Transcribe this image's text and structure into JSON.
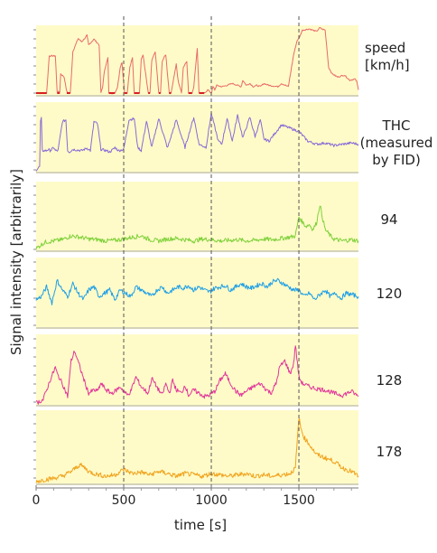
{
  "chart_data": {
    "type": "line",
    "xlabel": "time [s]",
    "ylabel": "Signal intensity [arbitrarily]",
    "xlim": [
      0,
      1840
    ],
    "xticks": [
      0,
      500,
      1000,
      1500
    ],
    "xtick_labels": [
      "0",
      "500",
      "1000",
      "1500"
    ],
    "grid": "dashed vertical lines at 500, 1000, 1500 s",
    "background": "#fffbc8",
    "panels": [
      {
        "label_lines": [
          "speed",
          "[km/h]"
        ],
        "color": "#e86a6a",
        "x": [
          0,
          60,
          75,
          110,
          120,
          135,
          140,
          160,
          175,
          195,
          210,
          240,
          260,
          280,
          290,
          300,
          330,
          360,
          370,
          380,
          390,
          410,
          415,
          450,
          465,
          480,
          490,
          505,
          520,
          535,
          550,
          560,
          590,
          600,
          610,
          640,
          650,
          660,
          680,
          700,
          710,
          720,
          740,
          760,
          770,
          800,
          810,
          830,
          840,
          860,
          870,
          890,
          900,
          920,
          930,
          960,
          980,
          1000,
          1010,
          1020,
          1030,
          1060,
          1090,
          1120,
          1150,
          1170,
          1180,
          1200,
          1220,
          1240,
          1260,
          1280,
          1300,
          1330,
          1380,
          1400,
          1440,
          1470,
          1490,
          1500,
          1520,
          1560,
          1600,
          1620,
          1630,
          1650,
          1670,
          1690,
          1720,
          1760,
          1790,
          1820,
          1830,
          1840
        ],
        "y": [
          0,
          0,
          58,
          58,
          2,
          2,
          30,
          25,
          2,
          0,
          65,
          85,
          80,
          86,
          90,
          75,
          84,
          75,
          0,
          10,
          35,
          55,
          0,
          0,
          10,
          40,
          48,
          0,
          0,
          40,
          55,
          0,
          0,
          52,
          60,
          0,
          0,
          50,
          65,
          0,
          0,
          50,
          60,
          0,
          0,
          45,
          20,
          0,
          40,
          50,
          0,
          0,
          10,
          70,
          0,
          0,
          5,
          0,
          10,
          5,
          12,
          10,
          12,
          15,
          12,
          10,
          20,
          12,
          15,
          10,
          12,
          10,
          15,
          12,
          10,
          15,
          10,
          60,
          82,
          85,
          98,
          100,
          96,
          102,
          100,
          98,
          40,
          30,
          25,
          28,
          20,
          22,
          18,
          5
        ]
      },
      {
        "label_lines": [
          "THC",
          "(measured",
          "by FID)"
        ],
        "color": "#8a6ad6",
        "x": [
          0,
          20,
          25,
          30,
          35,
          60,
          70,
          80,
          90,
          100,
          110,
          125,
          150,
          170,
          180,
          190,
          210,
          260,
          290,
          310,
          330,
          350,
          370,
          400,
          420,
          440,
          450,
          470,
          500,
          530,
          560,
          580,
          600,
          630,
          660,
          700,
          750,
          800,
          850,
          900,
          930,
          970,
          1000,
          1040,
          1060,
          1090,
          1120,
          1150,
          1180,
          1220,
          1250,
          1280,
          1300,
          1330,
          1400,
          1500,
          1550,
          1600,
          1650,
          1700,
          1750,
          1800,
          1840
        ],
        "y": [
          0,
          5,
          75,
          80,
          30,
          30,
          32,
          30,
          32,
          35,
          30,
          30,
          75,
          78,
          30,
          28,
          32,
          30,
          34,
          30,
          75,
          72,
          32,
          30,
          28,
          32,
          35,
          30,
          32,
          78,
          80,
          35,
          30,
          76,
          35,
          80,
          34,
          78,
          35,
          82,
          40,
          35,
          88,
          45,
          40,
          80,
          45,
          85,
          50,
          82,
          52,
          78,
          48,
          45,
          70,
          60,
          45,
          40,
          42,
          38,
          40,
          42,
          40
        ]
      },
      {
        "label_lines": [
          "94"
        ],
        "color": "#7fd13b",
        "x": [
          0,
          50,
          100,
          150,
          200,
          250,
          300,
          350,
          400,
          450,
          500,
          550,
          600,
          650,
          700,
          750,
          800,
          850,
          900,
          950,
          1000,
          1050,
          1100,
          1150,
          1200,
          1250,
          1300,
          1350,
          1400,
          1450,
          1480,
          1500,
          1520,
          1540,
          1560,
          1580,
          1600,
          1620,
          1630,
          1650,
          1680,
          1700,
          1750,
          1800,
          1840
        ],
        "y": [
          0,
          10,
          12,
          14,
          20,
          18,
          15,
          14,
          12,
          13,
          15,
          18,
          20,
          14,
          12,
          15,
          16,
          14,
          12,
          15,
          14,
          12,
          13,
          14,
          12,
          13,
          15,
          14,
          16,
          18,
          20,
          50,
          42,
          35,
          38,
          30,
          40,
          70,
          55,
          30,
          20,
          15,
          12,
          14,
          12
        ]
      },
      {
        "label_lines": [
          "120"
        ],
        "color": "#1f9fe6",
        "x": [
          0,
          30,
          60,
          90,
          120,
          150,
          180,
          210,
          240,
          270,
          300,
          330,
          360,
          390,
          420,
          450,
          480,
          510,
          540,
          570,
          600,
          630,
          660,
          690,
          720,
          750,
          780,
          810,
          840,
          870,
          900,
          930,
          960,
          990,
          1020,
          1050,
          1080,
          1110,
          1140,
          1170,
          1200,
          1230,
          1260,
          1290,
          1320,
          1350,
          1380,
          1410,
          1440,
          1470,
          1500,
          1530,
          1560,
          1590,
          1620,
          1650,
          1680,
          1710,
          1740,
          1770,
          1800,
          1840
        ],
        "y": [
          40,
          45,
          60,
          35,
          70,
          55,
          45,
          65,
          50,
          40,
          55,
          60,
          45,
          50,
          55,
          40,
          55,
          50,
          45,
          60,
          55,
          50,
          45,
          55,
          60,
          50,
          55,
          60,
          58,
          62,
          55,
          60,
          55,
          52,
          58,
          60,
          62,
          55,
          60,
          65,
          60,
          58,
          62,
          65,
          60,
          68,
          70,
          65,
          60,
          55,
          55,
          45,
          50,
          40,
          48,
          55,
          45,
          50,
          42,
          50,
          48,
          45
        ]
      },
      {
        "label_lines": [
          "128"
        ],
        "color": "#e0369a",
        "x": [
          0,
          40,
          80,
          110,
          120,
          150,
          180,
          200,
          220,
          250,
          280,
          300,
          330,
          350,
          370,
          400,
          430,
          450,
          480,
          520,
          540,
          570,
          600,
          640,
          660,
          700,
          720,
          740,
          760,
          780,
          800,
          830,
          850,
          870,
          900,
          930,
          960,
          990,
          1020,
          1050,
          1080,
          1110,
          1140,
          1170,
          1200,
          1240,
          1280,
          1310,
          1340,
          1370,
          1390,
          1420,
          1450,
          1470,
          1480,
          1500,
          1520,
          1560,
          1600,
          1650,
          1700,
          1750,
          1800,
          1840
        ],
        "y": [
          0,
          5,
          35,
          55,
          45,
          30,
          10,
          65,
          80,
          55,
          30,
          15,
          20,
          18,
          30,
          20,
          15,
          18,
          25,
          12,
          18,
          40,
          25,
          15,
          38,
          20,
          12,
          30,
          15,
          35,
          20,
          15,
          28,
          12,
          20,
          15,
          10,
          12,
          18,
          35,
          45,
          30,
          18,
          12,
          18,
          25,
          30,
          22,
          15,
          30,
          55,
          65,
          45,
          60,
          90,
          40,
          30,
          25,
          22,
          20,
          15,
          12,
          18,
          10
        ]
      },
      {
        "label_lines": [
          "178"
        ],
        "color": "#f0a31e",
        "x": [
          0,
          50,
          100,
          150,
          200,
          250,
          280,
          300,
          330,
          360,
          400,
          450,
          500,
          550,
          600,
          650,
          700,
          750,
          800,
          850,
          900,
          950,
          1000,
          1050,
          1100,
          1150,
          1200,
          1250,
          1300,
          1350,
          1400,
          1450,
          1480,
          1500,
          1510,
          1530,
          1560,
          1600,
          1650,
          1700,
          1750,
          1800,
          1840
        ],
        "y": [
          0,
          3,
          5,
          8,
          15,
          25,
          20,
          15,
          12,
          10,
          8,
          10,
          18,
          12,
          14,
          10,
          15,
          12,
          8,
          12,
          10,
          8,
          12,
          10,
          8,
          10,
          12,
          8,
          10,
          8,
          10,
          12,
          20,
          95,
          80,
          65,
          55,
          40,
          35,
          30,
          20,
          15,
          8
        ]
      }
    ]
  }
}
